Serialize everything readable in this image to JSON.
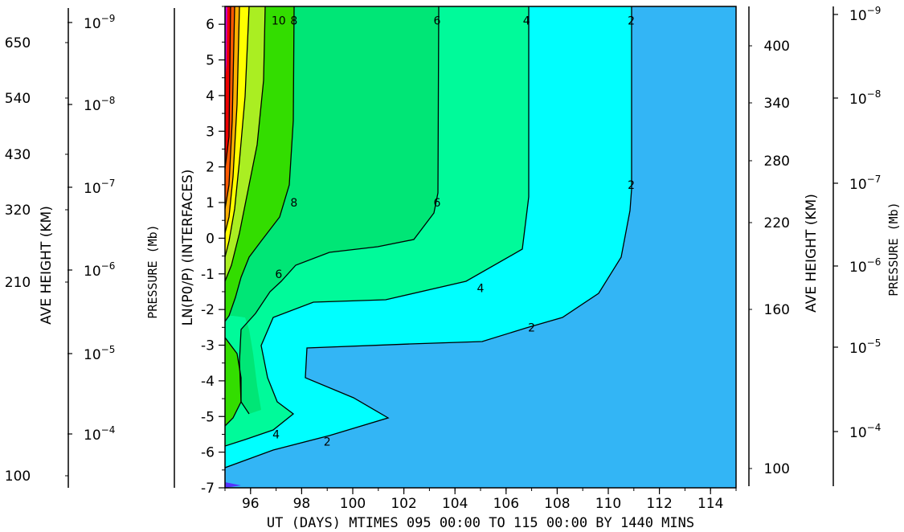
{
  "chart_data": {
    "type": "contour",
    "xlabel": "UT (DAYS) MTIMES 095 00:00 TO 115 00:00 BY 1440 MINS",
    "ylabel": "LN(P0/P) (INTERFACES)",
    "xlim": [
      95,
      115
    ],
    "ylim": [
      -7,
      6.5
    ],
    "x_ticks": [
      "96",
      "98",
      "100",
      "102",
      "104",
      "106",
      "108",
      "110",
      "112",
      "114"
    ],
    "y_ticks": [
      "6",
      "5",
      "4",
      "3",
      "2",
      "1",
      "0",
      "-1",
      "-2",
      "-3",
      "-4",
      "-5",
      "-6",
      "-7"
    ],
    "levels": [
      2,
      4,
      6,
      8,
      10
    ],
    "contour_labels": [
      {
        "text": "10",
        "x": 97.1,
        "y": 6.1
      },
      {
        "text": "8",
        "x": 97.7,
        "y": 6.1
      },
      {
        "text": "8",
        "x": 97.7,
        "y": 1.0
      },
      {
        "text": "6",
        "x": 103.3,
        "y": 6.1
      },
      {
        "text": "6",
        "x": 103.3,
        "y": 1.0
      },
      {
        "text": "6",
        "x": 97.1,
        "y": -1.0
      },
      {
        "text": "4",
        "x": 106.8,
        "y": 6.1
      },
      {
        "text": "4",
        "x": 105.0,
        "y": -1.4
      },
      {
        "text": "4",
        "x": 97.0,
        "y": -5.5
      },
      {
        "text": "2",
        "x": 110.9,
        "y": 6.1
      },
      {
        "text": "2",
        "x": 110.9,
        "y": 1.5
      },
      {
        "text": "2",
        "x": 107.0,
        "y": -2.5
      },
      {
        "text": "2",
        "x": 99.0,
        "y": -5.7
      }
    ],
    "regions": [
      {
        "level": "<2",
        "color": "#33b5f5"
      },
      {
        "level": "2-4",
        "color": "#00ffff"
      },
      {
        "level": "4-6",
        "color": "#00fa9a"
      },
      {
        "level": "6-8",
        "color": "#00e676"
      },
      {
        "level": "8-10",
        "color": "#33dd00"
      },
      {
        "level": "10-12",
        "color": "#aaee22"
      },
      {
        "level": "12-14",
        "color": "#ffff00"
      },
      {
        "level": "14-16",
        "color": "#ffb000"
      },
      {
        "level": "16-18",
        "color": "#ff5a00"
      },
      {
        "level": ">18",
        "color": "#ee0000"
      }
    ],
    "left_axes": {
      "height": {
        "title": "AVE HEIGHT (KM)",
        "ticks": [
          "650",
          "540",
          "430",
          "320",
          "210",
          "100"
        ]
      },
      "pressure": {
        "title": "PRESSURE (Mb)",
        "ticks": [
          "10^-9",
          "10^-8",
          "10^-7",
          "10^-6",
          "10^-5",
          "10^-4"
        ]
      }
    },
    "right_axes": {
      "height": {
        "title": "AVE HEIGHT (KM)",
        "ticks": [
          "400",
          "340",
          "280",
          "220",
          "160",
          "100"
        ]
      },
      "pressure": {
        "title": "PRESSURE (Mb)",
        "ticks": [
          "10^-9",
          "10^-8",
          "10^-7",
          "10^-6",
          "10^-5",
          "10^-4"
        ]
      }
    }
  }
}
